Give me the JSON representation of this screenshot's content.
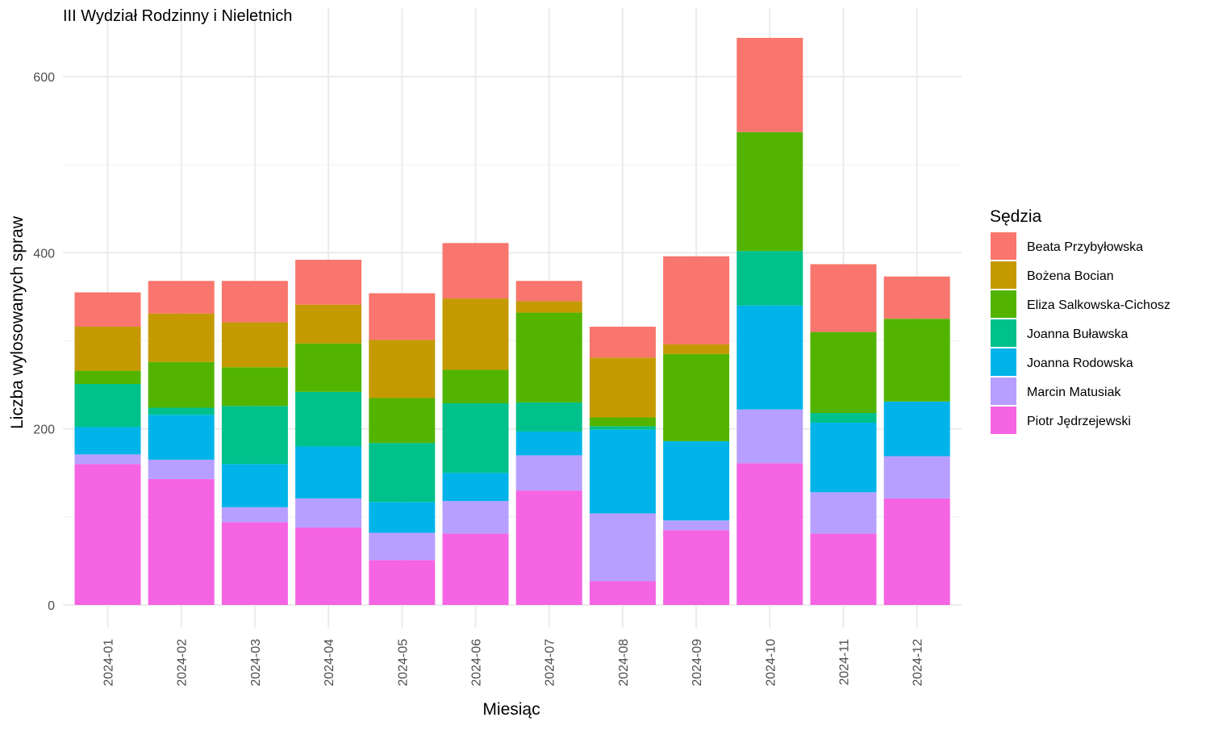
{
  "chart_data": {
    "type": "bar",
    "stacked": true,
    "title": "III Wydział Rodzinny i Nieletnich",
    "xlabel": "Miesiąc",
    "ylabel": "Liczba wylosowanych spraw",
    "ylim": [
      0,
      650
    ],
    "yticks": [
      0,
      200,
      400,
      600
    ],
    "grid": true,
    "legend_title": "Sędzia",
    "legend_position": "right",
    "categories": [
      "2024-01",
      "2024-02",
      "2024-03",
      "2024-04",
      "2024-05",
      "2024-06",
      "2024-07",
      "2024-08",
      "2024-09",
      "2024-10",
      "2024-11",
      "2024-12"
    ],
    "series": [
      {
        "name": "Piotr Jędrzejewski",
        "color": "#F564E3",
        "values": [
          160,
          143,
          94,
          88,
          51,
          81,
          130,
          27,
          85,
          161,
          81,
          121
        ]
      },
      {
        "name": "Marcin Matusiak",
        "color": "#B79FFF",
        "values": [
          11,
          22,
          17,
          33,
          31,
          37,
          40,
          77,
          11,
          61,
          47,
          48
        ]
      },
      {
        "name": "Joanna Rodowska",
        "color": "#00B4EA",
        "values": [
          31,
          51,
          49,
          59,
          35,
          32,
          27,
          95,
          90,
          118,
          79,
          62
        ]
      },
      {
        "name": "Joanna Buławska",
        "color": "#00C08B",
        "values": [
          49,
          8,
          66,
          62,
          67,
          79,
          33,
          4,
          0,
          62,
          11,
          0
        ]
      },
      {
        "name": "Eliza Salkowska-Cichosz",
        "color": "#53B400",
        "values": [
          15,
          52,
          44,
          55,
          51,
          38,
          102,
          10,
          99,
          135,
          92,
          94
        ]
      },
      {
        "name": "Bożena Bocian",
        "color": "#C49A00",
        "values": [
          50,
          55,
          51,
          44,
          66,
          81,
          13,
          68,
          11,
          0,
          0,
          0
        ]
      },
      {
        "name": "Beata Przybyłowska",
        "color": "#F8766D",
        "values": [
          39,
          37,
          47,
          51,
          53,
          63,
          23,
          35,
          100,
          107,
          77,
          48
        ]
      }
    ],
    "legend_order": [
      "Beata Przybyłowska",
      "Bożena Bocian",
      "Eliza Salkowska-Cichosz",
      "Joanna Buławska",
      "Joanna Rodowska",
      "Marcin Matusiak",
      "Piotr Jędrzejewski"
    ]
  }
}
